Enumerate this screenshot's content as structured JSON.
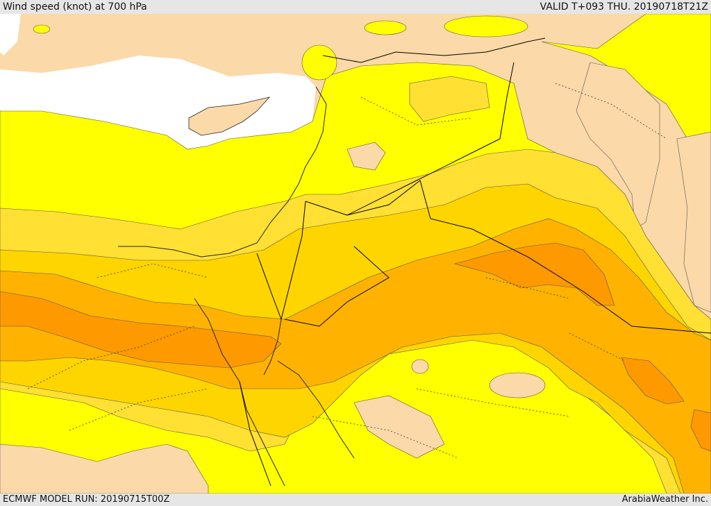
{
  "header": {
    "title": "Wind speed (knot) at 700 hPa",
    "valid": "VALID T+093 THU. 20190718T21Z"
  },
  "footer": {
    "model_run": "ECMWF MODEL RUN: 20190715T00Z",
    "credit": "ArabiaWeather Inc."
  },
  "map": {
    "colors": {
      "sea": "#ffffff",
      "calm": "#fbd9a8",
      "band1": "#ffff00",
      "band2": "#ffe033",
      "band3": "#ffd500",
      "band4": "#ffb300",
      "band5": "#ff9900",
      "border": "#000000",
      "contour": "#444444"
    }
  }
}
